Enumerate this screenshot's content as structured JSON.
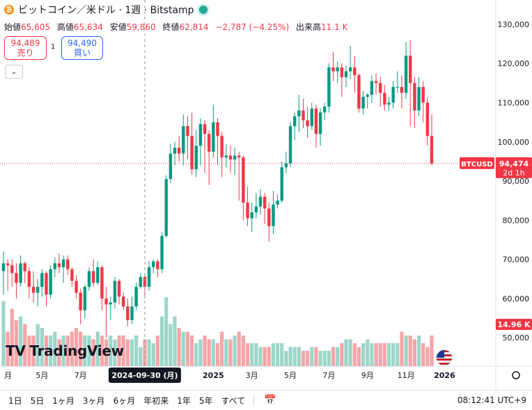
{
  "header": {
    "symbol_icon": "bitcoin-icon",
    "title": "ビットコイン／米ドル · 1週 · Bitstamp"
  },
  "ohlc": {
    "open_label": "始値",
    "open": "65,605",
    "high_label": "高値",
    "high": "65,634",
    "low_label": "安値",
    "low": "59,860",
    "close_label": "終値",
    "close": "62,814",
    "change": "−2,787 (−4.25%)",
    "volume_label": "出来高",
    "volume": "11.1 K"
  },
  "trade": {
    "sell_price": "94,489",
    "sell_label": "売り",
    "spread": "1",
    "buy_price": "94,490",
    "buy_label": "買い"
  },
  "price_tag": {
    "symbol": "BTCUSD",
    "price": "94,474",
    "countdown": "2d 1h",
    "value": 94474
  },
  "volume_tag": "14.96 K",
  "crosshair_date": "2024-09-30 (月)",
  "brand": "TradingView",
  "bottom": {
    "ranges": [
      "1日",
      "5日",
      "1ヶ月",
      "3ヶ月",
      "6ヶ月",
      "年初来",
      "1年",
      "5年",
      "すべて"
    ],
    "clock": "08:12:41 UTC+9"
  },
  "colors": {
    "up": "#089981",
    "down": "#f23645",
    "up_vol": "#9dd6ca",
    "down_vol": "#f5a5a8"
  },
  "chart_data": {
    "type": "candlestick",
    "ylim": [
      44000,
      133000
    ],
    "y_ticks": [
      50000,
      60000,
      70000,
      80000,
      90000,
      100000,
      110000,
      120000,
      130000
    ],
    "y_tick_labels": [
      "50,000",
      "60,000",
      "70,000",
      "80,000",
      "90,000",
      "100,000",
      "110,000",
      "120,000",
      "130,000"
    ],
    "x_ticks": [
      {
        "label": "月",
        "index": -0.2
      },
      {
        "label": "5月",
        "index": 9
      },
      {
        "label": "7月",
        "index": 18
      },
      {
        "label": "2025",
        "index": 49
      },
      {
        "label": "3月",
        "index": 58
      },
      {
        "label": "5月",
        "index": 67
      },
      {
        "label": "7月",
        "index": 76
      },
      {
        "label": "9月",
        "index": 85
      },
      {
        "label": "11月",
        "index": 94
      },
      {
        "label": "2026",
        "index": 103
      }
    ],
    "crosshair_index": 33,
    "last_price": 94474,
    "candles": [
      {
        "o": 67000,
        "c": 69000,
        "h": 72000,
        "l": 61000
      },
      {
        "o": 69000,
        "c": 68500,
        "h": 70000,
        "l": 62000
      },
      {
        "o": 68500,
        "c": 66500,
        "h": 70000,
        "l": 63000
      },
      {
        "o": 66500,
        "c": 64000,
        "h": 69000,
        "l": 60000
      },
      {
        "o": 64000,
        "c": 69000,
        "h": 71000,
        "l": 63000
      },
      {
        "o": 69000,
        "c": 67000,
        "h": 69500,
        "l": 64000
      },
      {
        "o": 67000,
        "c": 63000,
        "h": 68000,
        "l": 60000
      },
      {
        "o": 63000,
        "c": 61500,
        "h": 67000,
        "l": 59000
      },
      {
        "o": 61500,
        "c": 63000,
        "h": 65000,
        "l": 58000
      },
      {
        "o": 63000,
        "c": 66500,
        "h": 67500,
        "l": 60500
      },
      {
        "o": 66500,
        "c": 61000,
        "h": 67000,
        "l": 58000
      },
      {
        "o": 61000,
        "c": 67500,
        "h": 68500,
        "l": 60000
      },
      {
        "o": 67500,
        "c": 69000,
        "h": 70500,
        "l": 65500
      },
      {
        "o": 69000,
        "c": 68000,
        "h": 71500,
        "l": 66500
      },
      {
        "o": 68000,
        "c": 70000,
        "h": 71000,
        "l": 64000
      },
      {
        "o": 70000,
        "c": 67500,
        "h": 71000,
        "l": 66000
      },
      {
        "o": 67500,
        "c": 64500,
        "h": 68000,
        "l": 63000
      },
      {
        "o": 64500,
        "c": 61500,
        "h": 66000,
        "l": 60000
      },
      {
        "o": 61500,
        "c": 57000,
        "h": 62500,
        "l": 53500
      },
      {
        "o": 57000,
        "c": 63000,
        "h": 63500,
        "l": 55000
      },
      {
        "o": 63000,
        "c": 67000,
        "h": 68000,
        "l": 62000
      },
      {
        "o": 67000,
        "c": 64000,
        "h": 70000,
        "l": 63000
      },
      {
        "o": 64000,
        "c": 68000,
        "h": 69500,
        "l": 63500
      },
      {
        "o": 68000,
        "c": 60000,
        "h": 68500,
        "l": 57000
      },
      {
        "o": 60000,
        "c": 58500,
        "h": 63000,
        "l": 50000
      },
      {
        "o": 58500,
        "c": 59000,
        "h": 60500,
        "l": 54500
      },
      {
        "o": 59000,
        "c": 64500,
        "h": 65500,
        "l": 57500
      },
      {
        "o": 64500,
        "c": 60500,
        "h": 65000,
        "l": 58500
      },
      {
        "o": 60500,
        "c": 58000,
        "h": 61500,
        "l": 57000
      },
      {
        "o": 58000,
        "c": 54500,
        "h": 60000,
        "l": 53000
      },
      {
        "o": 54500,
        "c": 58000,
        "h": 60500,
        "l": 53500
      },
      {
        "o": 58000,
        "c": 63000,
        "h": 64000,
        "l": 57000
      },
      {
        "o": 63000,
        "c": 65500,
        "h": 66500,
        "l": 62500
      },
      {
        "o": 65500,
        "c": 63000,
        "h": 66000,
        "l": 60000
      },
      {
        "o": 63000,
        "c": 68000,
        "h": 69500,
        "l": 62000
      },
      {
        "o": 68000,
        "c": 69500,
        "h": 70000,
        "l": 66500
      },
      {
        "o": 69500,
        "c": 67500,
        "h": 70000,
        "l": 65500
      },
      {
        "o": 67500,
        "c": 76000,
        "h": 77000,
        "l": 66500
      },
      {
        "o": 76000,
        "c": 90500,
        "h": 91500,
        "l": 75500
      },
      {
        "o": 90500,
        "c": 97000,
        "h": 99500,
        "l": 89500
      },
      {
        "o": 97000,
        "c": 98500,
        "h": 100000,
        "l": 94000
      },
      {
        "o": 98500,
        "c": 97000,
        "h": 101500,
        "l": 95000
      },
      {
        "o": 97000,
        "c": 104000,
        "h": 107000,
        "l": 94000
      },
      {
        "o": 104000,
        "c": 101500,
        "h": 106500,
        "l": 95500
      },
      {
        "o": 101500,
        "c": 93000,
        "h": 107500,
        "l": 91500
      },
      {
        "o": 93000,
        "c": 99000,
        "h": 103000,
        "l": 91000
      },
      {
        "o": 99000,
        "c": 104500,
        "h": 106000,
        "l": 94000
      },
      {
        "o": 104500,
        "c": 102000,
        "h": 105500,
        "l": 92000
      },
      {
        "o": 102000,
        "c": 97500,
        "h": 103000,
        "l": 89000
      },
      {
        "o": 97500,
        "c": 105000,
        "h": 109500,
        "l": 96000
      },
      {
        "o": 105000,
        "c": 101500,
        "h": 106000,
        "l": 94000
      },
      {
        "o": 101500,
        "c": 96000,
        "h": 102500,
        "l": 91000
      },
      {
        "o": 96000,
        "c": 96500,
        "h": 99500,
        "l": 93500
      },
      {
        "o": 96500,
        "c": 95500,
        "h": 99000,
        "l": 92000
      },
      {
        "o": 95500,
        "c": 96500,
        "h": 98500,
        "l": 91500
      },
      {
        "o": 96500,
        "c": 96000,
        "h": 97500,
        "l": 85000
      },
      {
        "o": 96000,
        "c": 84500,
        "h": 96500,
        "l": 80000
      },
      {
        "o": 84500,
        "c": 80500,
        "h": 88500,
        "l": 78500
      },
      {
        "o": 80500,
        "c": 82000,
        "h": 84500,
        "l": 77000
      },
      {
        "o": 82000,
        "c": 83500,
        "h": 87000,
        "l": 80500
      },
      {
        "o": 83500,
        "c": 86000,
        "h": 88000,
        "l": 81500
      },
      {
        "o": 86000,
        "c": 83000,
        "h": 87000,
        "l": 79000
      },
      {
        "o": 83000,
        "c": 78500,
        "h": 84500,
        "l": 74500
      },
      {
        "o": 78500,
        "c": 84000,
        "h": 87500,
        "l": 76500
      },
      {
        "o": 84000,
        "c": 85000,
        "h": 86500,
        "l": 83000
      },
      {
        "o": 85000,
        "c": 93500,
        "h": 95000,
        "l": 84500
      },
      {
        "o": 93500,
        "c": 94500,
        "h": 97500,
        "l": 92000
      },
      {
        "o": 94500,
        "c": 104000,
        "h": 105000,
        "l": 93500
      },
      {
        "o": 104000,
        "c": 106500,
        "h": 107500,
        "l": 100500
      },
      {
        "o": 106500,
        "c": 108000,
        "h": 112000,
        "l": 102500
      },
      {
        "o": 108000,
        "c": 105500,
        "h": 111000,
        "l": 103500
      },
      {
        "o": 105500,
        "c": 104000,
        "h": 109000,
        "l": 101000
      },
      {
        "o": 104000,
        "c": 108500,
        "h": 110000,
        "l": 103000
      },
      {
        "o": 108500,
        "c": 102000,
        "h": 109500,
        "l": 98500
      },
      {
        "o": 102000,
        "c": 107500,
        "h": 108500,
        "l": 99000
      },
      {
        "o": 107500,
        "c": 109000,
        "h": 110000,
        "l": 105500
      },
      {
        "o": 109000,
        "c": 119000,
        "h": 120000,
        "l": 107500
      },
      {
        "o": 119000,
        "c": 118000,
        "h": 123000,
        "l": 115500
      },
      {
        "o": 118000,
        "c": 119000,
        "h": 120500,
        "l": 115000
      },
      {
        "o": 119000,
        "c": 116500,
        "h": 120000,
        "l": 111500
      },
      {
        "o": 116500,
        "c": 118000,
        "h": 119500,
        "l": 114000
      },
      {
        "o": 118000,
        "c": 119000,
        "h": 124500,
        "l": 116000
      },
      {
        "o": 119000,
        "c": 117000,
        "h": 122000,
        "l": 112500
      },
      {
        "o": 117000,
        "c": 108500,
        "h": 117500,
        "l": 107500
      },
      {
        "o": 108500,
        "c": 111500,
        "h": 113000,
        "l": 107000
      },
      {
        "o": 111500,
        "c": 112000,
        "h": 112500,
        "l": 108500
      },
      {
        "o": 112000,
        "c": 115500,
        "h": 117000,
        "l": 110000
      },
      {
        "o": 115500,
        "c": 115000,
        "h": 117500,
        "l": 112000
      },
      {
        "o": 115000,
        "c": 112500,
        "h": 116500,
        "l": 109000
      },
      {
        "o": 112500,
        "c": 109500,
        "h": 114500,
        "l": 108000
      },
      {
        "o": 109500,
        "c": 110000,
        "h": 111500,
        "l": 108000
      },
      {
        "o": 110000,
        "c": 114000,
        "h": 115500,
        "l": 108500
      },
      {
        "o": 114000,
        "c": 114000,
        "h": 118000,
        "l": 112500
      },
      {
        "o": 114000,
        "c": 112500,
        "h": 117000,
        "l": 108500
      },
      {
        "o": 112500,
        "c": 122000,
        "h": 125500,
        "l": 111000
      },
      {
        "o": 122000,
        "c": 115000,
        "h": 126000,
        "l": 104000
      },
      {
        "o": 115000,
        "c": 108000,
        "h": 116500,
        "l": 103500
      },
      {
        "o": 108000,
        "c": 114000,
        "h": 116500,
        "l": 106500
      },
      {
        "o": 114000,
        "c": 110000,
        "h": 115500,
        "l": 105000
      },
      {
        "o": 110000,
        "c": 101500,
        "h": 111500,
        "l": 99000
      },
      {
        "o": 101500,
        "c": 94474,
        "h": 107000,
        "l": 94000
      }
    ],
    "volumes": [
      17,
      9,
      15,
      12,
      13,
      11,
      8,
      8,
      11,
      10,
      8,
      8,
      9,
      7,
      8,
      8,
      9,
      10,
      9,
      8,
      8,
      7,
      9,
      8,
      7,
      8,
      7,
      8,
      8,
      7,
      7,
      8,
      5,
      7,
      7,
      6,
      8,
      13,
      18,
      11,
      13,
      10,
      9,
      9,
      8,
      6,
      7,
      8,
      7,
      7,
      6,
      9,
      7,
      7,
      8,
      9,
      8,
      6,
      6,
      6,
      5,
      5,
      5,
      6,
      6,
      6,
      4,
      5,
      5,
      5,
      4,
      4,
      5,
      5,
      4,
      4,
      4,
      5,
      5,
      6,
      7,
      7,
      6,
      5,
      6,
      7,
      6,
      6,
      6,
      6,
      6,
      6,
      6,
      9,
      8,
      8,
      7,
      8,
      6,
      5,
      8
    ],
    "volume_max": 20
  }
}
